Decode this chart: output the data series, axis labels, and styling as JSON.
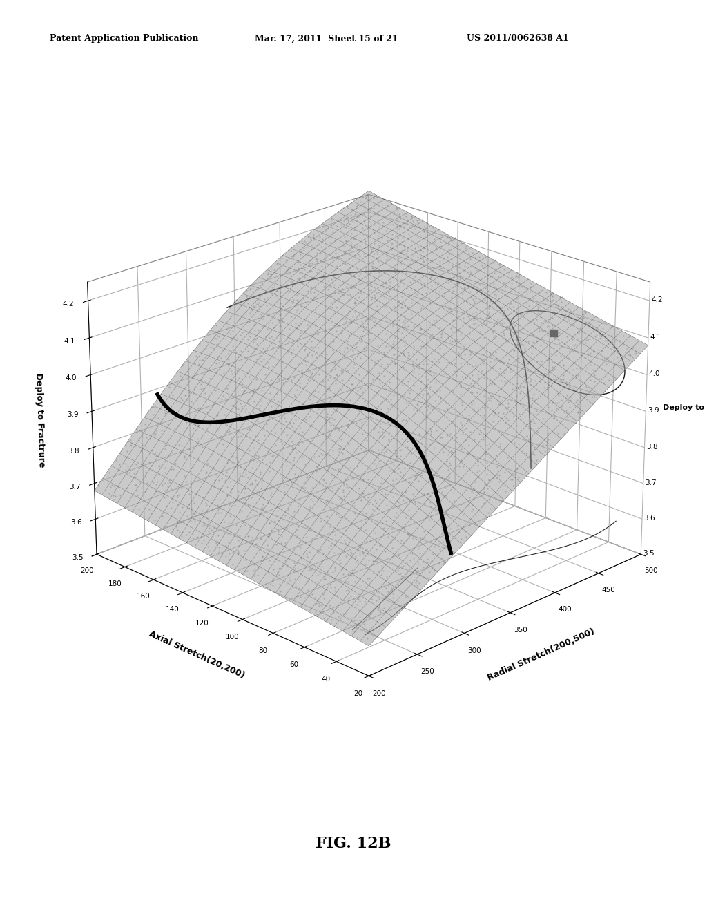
{
  "title": "FIG. 12B",
  "header_left": "Patent Application Publication",
  "header_center": "Mar. 17, 2011  Sheet 15 of 21",
  "header_right": "US 2011/0062638 A1",
  "xlabel_radial": "Radial Stretch(200,500)",
  "xlabel_axial": "Axial Stretch(20,200)",
  "zlabel": "Deploy to Fractrure",
  "radial_ticks": [
    200,
    250,
    300,
    350,
    400,
    450,
    500
  ],
  "axial_ticks": [
    20,
    40,
    60,
    80,
    100,
    120,
    140,
    160,
    180,
    200
  ],
  "z_ticks": [
    3.5,
    3.6,
    3.7,
    3.8,
    3.9,
    4.0,
    4.1,
    4.2
  ],
  "background_color": "#ffffff"
}
